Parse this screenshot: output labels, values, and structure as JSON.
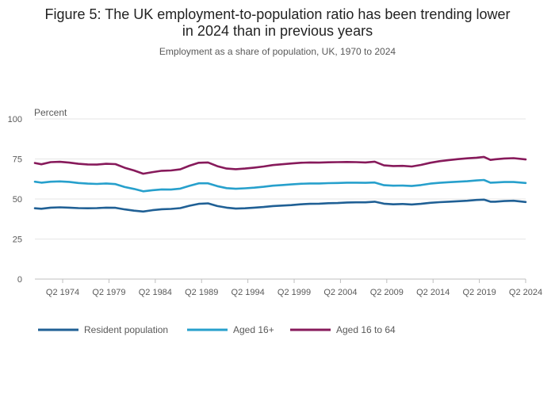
{
  "chart_data": {
    "type": "line",
    "title_lines": [
      "Figure 5: The UK employment-to-population ratio has been trending lower",
      "in 2024 than in previous years"
    ],
    "subtitle": "Employment as a share of population, UK, 1970 to 2024",
    "ylabel": "Percent",
    "ylim": [
      0,
      100
    ],
    "yticks": [
      0,
      25,
      50,
      75,
      100
    ],
    "xlim": [
      1971.3,
      2024.3
    ],
    "xticks": [
      {
        "label": "Q2 1974",
        "x": 1974.3
      },
      {
        "label": "Q2 1979",
        "x": 1979.3
      },
      {
        "label": "Q2 1984",
        "x": 1984.3
      },
      {
        "label": "Q2 1989",
        "x": 1989.3
      },
      {
        "label": "Q2 1994",
        "x": 1994.3
      },
      {
        "label": "Q2 1999",
        "x": 1999.3
      },
      {
        "label": "Q2 2004",
        "x": 2004.3
      },
      {
        "label": "Q2 2009",
        "x": 2009.3
      },
      {
        "label": "Q2 2014",
        "x": 2014.3
      },
      {
        "label": "Q2 2019",
        "x": 2019.3
      },
      {
        "label": "Q2 2024",
        "x": 2024.3
      }
    ],
    "grid": true,
    "legend_position": "bottom-left",
    "series": [
      {
        "name": "Resident population",
        "color": "#206095",
        "points": [
          [
            1971.3,
            44.2
          ],
          [
            1972.0,
            43.9
          ],
          [
            1973.0,
            44.6
          ],
          [
            1974.0,
            44.8
          ],
          [
            1975.0,
            44.6
          ],
          [
            1976.0,
            44.3
          ],
          [
            1977.0,
            44.2
          ],
          [
            1978.0,
            44.3
          ],
          [
            1979.0,
            44.6
          ],
          [
            1980.0,
            44.5
          ],
          [
            1981.0,
            43.5
          ],
          [
            1982.0,
            42.7
          ],
          [
            1983.0,
            42.2
          ],
          [
            1984.0,
            43.0
          ],
          [
            1985.0,
            43.6
          ],
          [
            1986.0,
            43.8
          ],
          [
            1987.0,
            44.3
          ],
          [
            1988.0,
            45.8
          ],
          [
            1989.0,
            47.0
          ],
          [
            1990.0,
            47.3
          ],
          [
            1991.0,
            45.6
          ],
          [
            1992.0,
            44.6
          ],
          [
            1993.0,
            44.0
          ],
          [
            1994.0,
            44.2
          ],
          [
            1995.0,
            44.6
          ],
          [
            1996.0,
            45.0
          ],
          [
            1997.0,
            45.6
          ],
          [
            1998.0,
            45.9
          ],
          [
            1999.0,
            46.2
          ],
          [
            2000.0,
            46.7
          ],
          [
            2001.0,
            47.0
          ],
          [
            2002.0,
            47.1
          ],
          [
            2003.0,
            47.4
          ],
          [
            2004.0,
            47.5
          ],
          [
            2005.0,
            47.8
          ],
          [
            2006.0,
            47.9
          ],
          [
            2007.0,
            47.9
          ],
          [
            2008.0,
            48.3
          ],
          [
            2009.0,
            47.1
          ],
          [
            2010.0,
            46.7
          ],
          [
            2011.0,
            46.9
          ],
          [
            2012.0,
            46.6
          ],
          [
            2013.0,
            47.0
          ],
          [
            2014.0,
            47.6
          ],
          [
            2015.0,
            48.0
          ],
          [
            2016.0,
            48.3
          ],
          [
            2017.0,
            48.6
          ],
          [
            2018.0,
            48.9
          ],
          [
            2019.0,
            49.4
          ],
          [
            2019.8,
            49.6
          ],
          [
            2020.5,
            48.3
          ],
          [
            2021.0,
            48.3
          ],
          [
            2022.0,
            48.7
          ],
          [
            2023.0,
            48.9
          ],
          [
            2024.3,
            48.1
          ]
        ]
      },
      {
        "name": "Aged 16+",
        "color": "#27a0cc",
        "points": [
          [
            1971.3,
            60.8
          ],
          [
            1972.0,
            60.2
          ],
          [
            1973.0,
            60.8
          ],
          [
            1974.0,
            61.0
          ],
          [
            1975.0,
            60.7
          ],
          [
            1976.0,
            60.0
          ],
          [
            1977.0,
            59.6
          ],
          [
            1978.0,
            59.4
          ],
          [
            1979.0,
            59.7
          ],
          [
            1980.0,
            59.3
          ],
          [
            1981.0,
            57.5
          ],
          [
            1982.0,
            56.3
          ],
          [
            1983.0,
            54.8
          ],
          [
            1984.0,
            55.5
          ],
          [
            1985.0,
            56.0
          ],
          [
            1986.0,
            55.9
          ],
          [
            1987.0,
            56.5
          ],
          [
            1988.0,
            58.2
          ],
          [
            1989.0,
            59.8
          ],
          [
            1990.0,
            59.8
          ],
          [
            1991.0,
            58.0
          ],
          [
            1992.0,
            56.8
          ],
          [
            1993.0,
            56.4
          ],
          [
            1994.0,
            56.7
          ],
          [
            1995.0,
            57.1
          ],
          [
            1996.0,
            57.6
          ],
          [
            1997.0,
            58.3
          ],
          [
            1998.0,
            58.7
          ],
          [
            1999.0,
            59.1
          ],
          [
            2000.0,
            59.5
          ],
          [
            2001.0,
            59.7
          ],
          [
            2002.0,
            59.7
          ],
          [
            2003.0,
            59.9
          ],
          [
            2004.0,
            60.0
          ],
          [
            2005.0,
            60.2
          ],
          [
            2006.0,
            60.2
          ],
          [
            2007.0,
            60.1
          ],
          [
            2008.0,
            60.3
          ],
          [
            2009.0,
            58.6
          ],
          [
            2010.0,
            58.3
          ],
          [
            2011.0,
            58.4
          ],
          [
            2012.0,
            58.1
          ],
          [
            2013.0,
            58.7
          ],
          [
            2014.0,
            59.6
          ],
          [
            2015.0,
            60.1
          ],
          [
            2016.0,
            60.5
          ],
          [
            2017.0,
            60.8
          ],
          [
            2018.0,
            61.1
          ],
          [
            2019.0,
            61.6
          ],
          [
            2019.8,
            61.9
          ],
          [
            2020.5,
            60.2
          ],
          [
            2021.0,
            60.3
          ],
          [
            2022.0,
            60.6
          ],
          [
            2023.0,
            60.6
          ],
          [
            2024.3,
            60.0
          ]
        ]
      },
      {
        "name": "Aged 16 to 64",
        "color": "#871a5b",
        "points": [
          [
            1971.3,
            72.5
          ],
          [
            1972.0,
            71.7
          ],
          [
            1973.0,
            73.0
          ],
          [
            1974.0,
            73.2
          ],
          [
            1975.0,
            72.7
          ],
          [
            1976.0,
            72.0
          ],
          [
            1977.0,
            71.6
          ],
          [
            1978.0,
            71.5
          ],
          [
            1979.0,
            72.0
          ],
          [
            1980.0,
            71.8
          ],
          [
            1981.0,
            69.5
          ],
          [
            1982.0,
            67.8
          ],
          [
            1983.0,
            65.8
          ],
          [
            1984.0,
            66.8
          ],
          [
            1985.0,
            67.6
          ],
          [
            1986.0,
            67.8
          ],
          [
            1987.0,
            68.5
          ],
          [
            1988.0,
            70.8
          ],
          [
            1989.0,
            72.6
          ],
          [
            1990.0,
            72.8
          ],
          [
            1991.0,
            70.5
          ],
          [
            1992.0,
            69.0
          ],
          [
            1993.0,
            68.6
          ],
          [
            1994.0,
            69.0
          ],
          [
            1995.0,
            69.6
          ],
          [
            1996.0,
            70.3
          ],
          [
            1997.0,
            71.2
          ],
          [
            1998.0,
            71.7
          ],
          [
            1999.0,
            72.2
          ],
          [
            2000.0,
            72.6
          ],
          [
            2001.0,
            72.8
          ],
          [
            2002.0,
            72.7
          ],
          [
            2003.0,
            72.9
          ],
          [
            2004.0,
            73.0
          ],
          [
            2005.0,
            73.1
          ],
          [
            2006.0,
            73.0
          ],
          [
            2007.0,
            72.8
          ],
          [
            2008.0,
            73.3
          ],
          [
            2009.0,
            71.0
          ],
          [
            2010.0,
            70.6
          ],
          [
            2011.0,
            70.7
          ],
          [
            2012.0,
            70.3
          ],
          [
            2013.0,
            71.3
          ],
          [
            2014.0,
            72.6
          ],
          [
            2015.0,
            73.6
          ],
          [
            2016.0,
            74.3
          ],
          [
            2017.0,
            74.9
          ],
          [
            2018.0,
            75.4
          ],
          [
            2019.0,
            75.8
          ],
          [
            2019.8,
            76.3
          ],
          [
            2020.5,
            74.4
          ],
          [
            2021.0,
            74.8
          ],
          [
            2022.0,
            75.3
          ],
          [
            2023.0,
            75.5
          ],
          [
            2024.3,
            74.7
          ]
        ]
      }
    ]
  }
}
